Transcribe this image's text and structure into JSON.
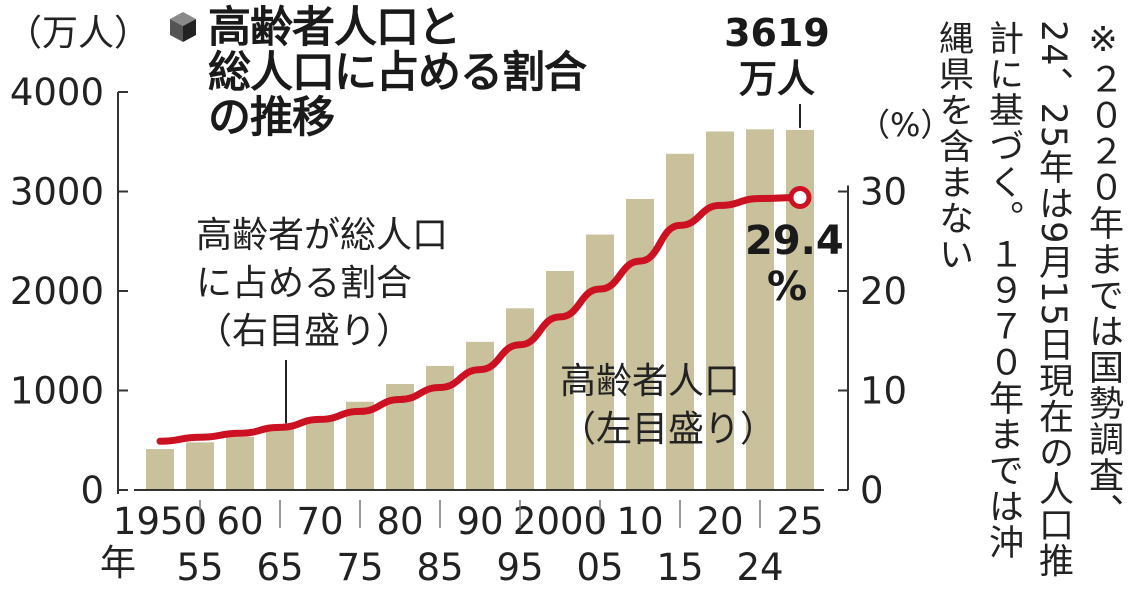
{
  "title": {
    "line1": "高齢者人口と",
    "line2": "総人口に占める割合",
    "line3": "の推移"
  },
  "units": {
    "left": "（万人）",
    "right": "（%）",
    "year": "年"
  },
  "last_bar_label": {
    "line1": "3619",
    "line2": "万人"
  },
  "last_rate_label": {
    "line1": "29.4",
    "line2": "%"
  },
  "annotations": {
    "rate_line1": "高齢者が総人口",
    "rate_line2": "に占める割合",
    "rate_line3": "（右目盛り）",
    "pop_line1": "高齢者人口",
    "pop_line2": "（左目盛り）"
  },
  "note": "※２０２０年までは国勢調査、24、25年は9月15日現在の人口推計に基づく。１９７０年までは沖縄県を含まない",
  "colors": {
    "bar": "#c9c09c",
    "line": "#cc1122",
    "axis": "#333333"
  },
  "chart_data": {
    "type": "bar+line",
    "categories": [
      "1950",
      "55",
      "60",
      "65",
      "70",
      "75",
      "80",
      "85",
      "90",
      "95",
      "2000",
      "05",
      "10",
      "15",
      "20",
      "24",
      "25"
    ],
    "x_top_labels": [
      "1950",
      "60",
      "70",
      "80",
      "90",
      "2000",
      "10",
      "20",
      "25"
    ],
    "x_bottom_labels": [
      "55",
      "65",
      "75",
      "85",
      "95",
      "05",
      "15",
      "24"
    ],
    "left_axis": {
      "ticks": [
        "0",
        "1000",
        "2000",
        "3000",
        "4000"
      ],
      "ylim": [
        0,
        4000
      ]
    },
    "right_axis": {
      "ticks": [
        "0",
        "10",
        "20",
        "30"
      ],
      "ylim": [
        0,
        40
      ]
    },
    "series": [
      {
        "name": "高齢者人口",
        "type": "bar",
        "axis": "left",
        "values": [
          411,
          479,
          535,
          618,
          733,
          887,
          1065,
          1247,
          1489,
          1826,
          2201,
          2567,
          2925,
          3379,
          3603,
          3625,
          3619
        ]
      },
      {
        "name": "高齢者が総人口に占める割合",
        "type": "line",
        "axis": "right",
        "values": [
          4.9,
          5.3,
          5.7,
          6.3,
          7.1,
          7.9,
          9.1,
          10.3,
          12.1,
          14.6,
          17.4,
          20.2,
          23.0,
          26.6,
          28.6,
          29.3,
          29.4
        ]
      }
    ]
  }
}
